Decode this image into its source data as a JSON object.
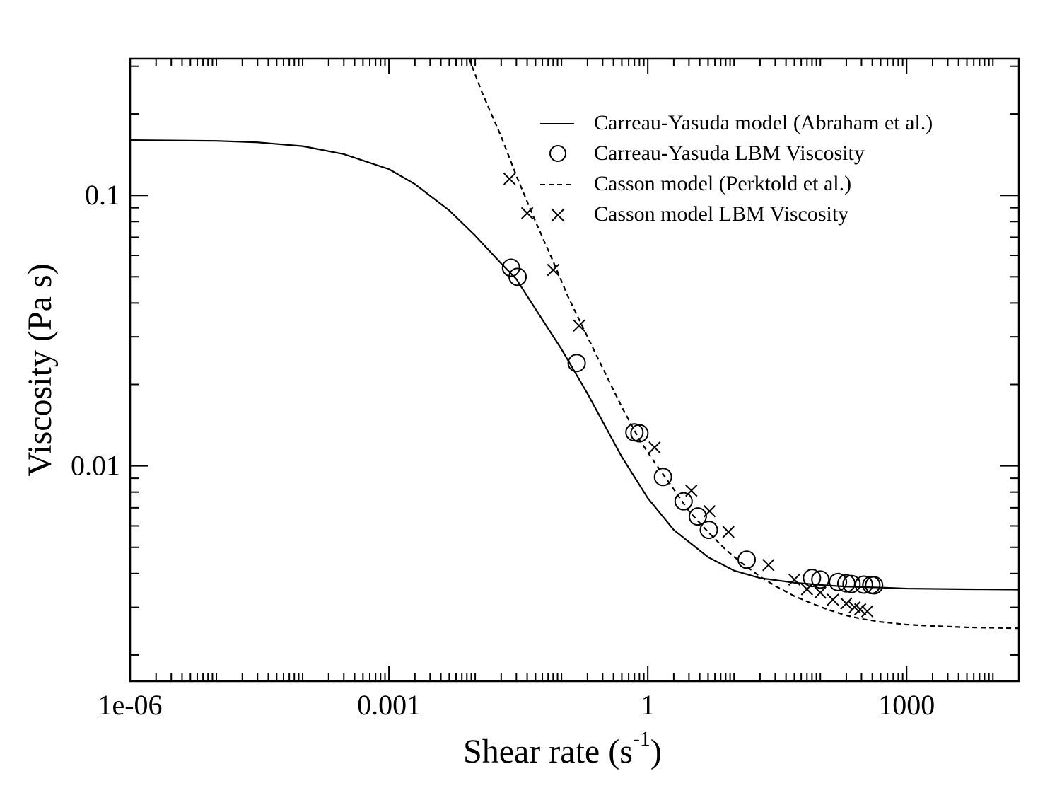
{
  "chart_data": {
    "type": "line",
    "title": "",
    "xlabel": "Shear rate (s",
    "xlabel_superscript": "-1",
    "xlabel_suffix": ")",
    "ylabel": "Viscosity (Pa s)",
    "x_scale": "log",
    "y_scale": "log",
    "xlim": [
      1e-06,
      20000
    ],
    "ylim": [
      0.0016,
      0.32
    ],
    "grid": false,
    "legend_position": "top-right",
    "x_ticks": [
      {
        "value": 1e-06,
        "label": "1e-06"
      },
      {
        "value": 0.001,
        "label": "0.001"
      },
      {
        "value": 1,
        "label": "1"
      },
      {
        "value": 1000,
        "label": "1000"
      }
    ],
    "y_ticks": [
      {
        "value": 0.1,
        "label": "0.1"
      },
      {
        "value": 0.01,
        "label": "0.01"
      }
    ],
    "series": [
      {
        "name": "Carreau-Yasuda model (Abraham et al.)",
        "kind": "line",
        "style": "solid",
        "x": [
          1e-06,
          1e-05,
          3e-05,
          0.0001,
          0.0003,
          0.001,
          0.002,
          0.005,
          0.01,
          0.02,
          0.03,
          0.05,
          0.1,
          0.2,
          0.5,
          1,
          2,
          5,
          10,
          20,
          50,
          100,
          200,
          500,
          1000,
          5000,
          20000
        ],
        "y": [
          0.16,
          0.159,
          0.157,
          0.152,
          0.142,
          0.125,
          0.11,
          0.088,
          0.071,
          0.056,
          0.049,
          0.038,
          0.027,
          0.0185,
          0.0108,
          0.0076,
          0.0058,
          0.0046,
          0.0041,
          0.00385,
          0.0037,
          0.00363,
          0.00358,
          0.00355,
          0.00352,
          0.0035,
          0.00349
        ]
      },
      {
        "name": "Carreau-Yasuda LBM Viscosity",
        "kind": "markers",
        "marker": "circle",
        "x": [
          0.026,
          0.031,
          0.15,
          0.7,
          0.8,
          1.5,
          2.6,
          3.8,
          5.1,
          14,
          80,
          100,
          160,
          200,
          230,
          320,
          390,
          420
        ],
        "y": [
          0.054,
          0.05,
          0.024,
          0.0133,
          0.0132,
          0.0091,
          0.0074,
          0.0065,
          0.0058,
          0.0045,
          0.00385,
          0.0038,
          0.00372,
          0.00368,
          0.00366,
          0.00364,
          0.00363,
          0.00362
        ]
      },
      {
        "name": "Casson model (Perkteld et al.)",
        "kind": "line",
        "style": "dashed",
        "x": [
          0.0085,
          0.012,
          0.02,
          0.03,
          0.05,
          0.08,
          0.12,
          0.2,
          0.3,
          0.5,
          0.8,
          1.2,
          2,
          3,
          5,
          8,
          12,
          20,
          30,
          50,
          80,
          120,
          200,
          300,
          500,
          1000,
          2000,
          5000,
          20000
        ],
        "y": [
          0.32,
          0.24,
          0.165,
          0.118,
          0.08,
          0.057,
          0.042,
          0.03,
          0.023,
          0.0165,
          0.0125,
          0.0103,
          0.0082,
          0.0068,
          0.0057,
          0.0049,
          0.0044,
          0.0039,
          0.0036,
          0.0033,
          0.0031,
          0.00295,
          0.0028,
          0.00272,
          0.00265,
          0.00259,
          0.00256,
          0.00253,
          0.00251
        ]
      },
      {
        "name": "Casson model LBM Viscosity",
        "kind": "markers",
        "marker": "x",
        "x": [
          0.025,
          0.04,
          0.08,
          0.16,
          1.2,
          3.2,
          5.2,
          8.6,
          25,
          50,
          70,
          100,
          140,
          200,
          250,
          290,
          350
        ],
        "y": [
          0.115,
          0.086,
          0.053,
          0.033,
          0.0117,
          0.0081,
          0.0068,
          0.0057,
          0.0043,
          0.0038,
          0.0035,
          0.0034,
          0.0032,
          0.0031,
          0.003,
          0.00295,
          0.0029
        ]
      }
    ],
    "legend_labels": [
      "Carreau-Yasuda model (Abraham et al.)",
      "Carreau-Yasuda LBM Viscosity",
      "Casson model (Perktold et al.)",
      "Casson model LBM Viscosity"
    ]
  }
}
